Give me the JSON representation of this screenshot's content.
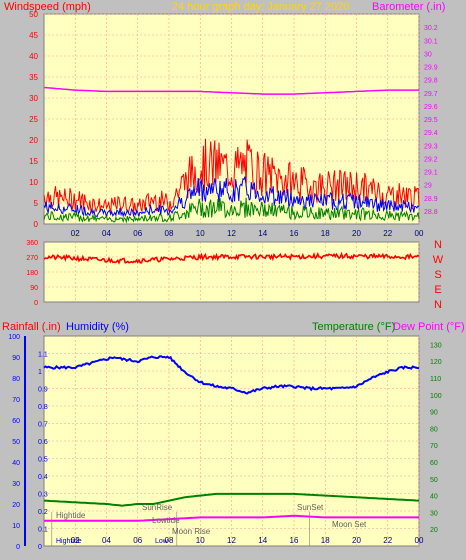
{
  "header": {
    "left_title": "Windspeed (mph)",
    "center_title": "24 hour graph day:  January 27 2020",
    "right_title": "Barometer (.in)"
  },
  "lower_header": {
    "rainfall": "Rainfall (.in)",
    "humidity": "Humidity (%)",
    "temperature": "Temperature (°F)",
    "dewpoint": "Dew Point (°F)"
  },
  "colors": {
    "page_bg": "#c0c0c0",
    "plot_bg": "#ffffc0",
    "wind": "#ff0000",
    "wind_avg": "#0000ff",
    "wind_low": "#008000",
    "barometer": "#ff00ff",
    "humidity": "#0000ff",
    "temperature": "#008000",
    "dewpoint": "#ff00ff",
    "title": "#ffd700",
    "grid": "#ff9999"
  },
  "chart_data": [
    {
      "type": "line",
      "x_ticks": [
        "02",
        "04",
        "06",
        "08",
        "10",
        "12",
        "14",
        "16",
        "18",
        "20",
        "22",
        "00"
      ],
      "left_axis": {
        "label": "Windspeed (mph)",
        "ylim": [
          0,
          50
        ],
        "ticks": [
          "0",
          "5",
          "10",
          "15",
          "20",
          "25",
          "30",
          "35",
          "40",
          "45",
          "50"
        ]
      },
      "right_axis": {
        "label": "Barometer (.in)",
        "ylim": [
          28.7,
          30.3
        ],
        "ticks": [
          "28.8",
          "28.9",
          "29",
          "29.1",
          "29.2",
          "29.3",
          "29.4",
          "29.5",
          "29.6",
          "29.7",
          "29.8",
          "29.9",
          "30",
          "30.1",
          "30.2"
        ]
      },
      "series": [
        {
          "name": "Windspeed (mph)",
          "axis": "left",
          "x": [
            0,
            1,
            2,
            3,
            4,
            5,
            6,
            7,
            8,
            9,
            10,
            11,
            12,
            13,
            14,
            15,
            16,
            17,
            18,
            19,
            20,
            21,
            22,
            23,
            24
          ],
          "values": [
            7,
            6,
            6,
            5,
            4,
            5,
            4,
            6,
            5,
            10,
            14,
            14,
            13,
            14,
            12,
            11,
            10,
            9,
            9,
            9,
            9,
            8,
            7,
            7,
            6
          ]
        },
        {
          "name": "Barometer (.in)",
          "axis": "right",
          "x": [
            0,
            2,
            4,
            6,
            8,
            10,
            12,
            14,
            15,
            16,
            18,
            20,
            22,
            24
          ],
          "values": [
            29.74,
            29.72,
            29.71,
            29.71,
            29.71,
            29.71,
            29.7,
            29.69,
            29.69,
            29.69,
            29.7,
            29.71,
            29.72,
            29.72
          ]
        }
      ]
    },
    {
      "type": "line",
      "x_ticks": [
        "02",
        "04",
        "06",
        "08",
        "10",
        "12",
        "14",
        "16",
        "18",
        "20",
        "22",
        "00"
      ],
      "right_labels": [
        "N",
        "W",
        "S",
        "E",
        "N"
      ],
      "y_ticks": [
        "0",
        "90",
        "180",
        "270",
        "360"
      ],
      "ylim": [
        0,
        360
      ],
      "series": [
        {
          "name": "Wind direction",
          "x": [
            0,
            2,
            4,
            6,
            8,
            10,
            12,
            14,
            16,
            18,
            20,
            22,
            24
          ],
          "values": [
            270,
            262,
            250,
            248,
            258,
            270,
            272,
            272,
            272,
            275,
            275,
            272,
            270
          ]
        }
      ]
    },
    {
      "type": "line",
      "x_ticks": [
        "02",
        "04",
        "06",
        "08",
        "10",
        "12",
        "14",
        "16",
        "18",
        "20",
        "22",
        "00"
      ],
      "humidity_axis": {
        "label": "Humidity (%)",
        "ylim": [
          0,
          100
        ],
        "ticks": [
          "0",
          "10",
          "20",
          "30",
          "40",
          "50",
          "60",
          "70",
          "80",
          "90",
          "100"
        ]
      },
      "rainfall_axis": {
        "label": "Rainfall (.in)",
        "ylim": [
          0,
          1.2
        ],
        "ticks": [
          "0",
          "0.1",
          "0.2",
          "0.3",
          "0.4",
          "0.5",
          "0.6",
          "0.7",
          "0.8",
          "0.9",
          "1",
          "1.1"
        ]
      },
      "temperature_axis": {
        "label": "Temperature (°F)",
        "ylim": [
          10,
          135
        ],
        "ticks": [
          "20",
          "30",
          "40",
          "50",
          "60",
          "70",
          "80",
          "90",
          "100",
          "110",
          "120",
          "130"
        ]
      },
      "series": [
        {
          "name": "Humidity (%)",
          "axis": "humidity",
          "x": [
            0,
            1,
            2,
            3,
            4,
            4.5,
            5,
            6,
            7,
            8,
            9,
            10,
            11,
            12,
            13,
            14,
            15,
            16,
            17,
            18,
            19,
            20,
            21,
            22,
            23,
            24
          ],
          "values": [
            85,
            85,
            85,
            87,
            89,
            90,
            89,
            88,
            90,
            90,
            83,
            78,
            76,
            75,
            73,
            75,
            76,
            76,
            75,
            75,
            75,
            76,
            80,
            83,
            85,
            85
          ]
        },
        {
          "name": "Temperature (°F)",
          "axis": "temperature",
          "x": [
            0,
            2,
            4,
            5,
            6,
            7,
            8,
            9,
            10,
            11,
            12,
            13,
            14,
            16,
            18,
            20,
            22,
            24
          ],
          "values": [
            37,
            36,
            35,
            34,
            35,
            35,
            37,
            39,
            40,
            41,
            41,
            41,
            41,
            41,
            40,
            39,
            38,
            37
          ]
        },
        {
          "name": "Dew Point (°F)",
          "axis": "temperature",
          "x": [
            0,
            2,
            4,
            6,
            8,
            10,
            12,
            14,
            16,
            18,
            20,
            22,
            24
          ],
          "values": [
            25,
            25,
            25,
            25,
            26,
            27,
            27,
            27,
            28,
            27,
            27,
            27,
            27
          ]
        }
      ],
      "annotations": [
        "Hightide",
        "SunRise",
        "Lowtide",
        "Moon Rise",
        "SunSet",
        "Moon Set"
      ],
      "bottom_row_labels": [
        "Hightide",
        "Low"
      ]
    }
  ]
}
